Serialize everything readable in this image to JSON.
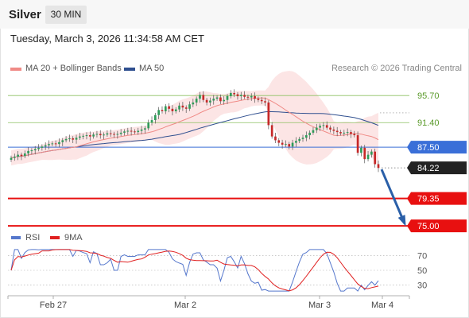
{
  "header": {
    "instrument": "Silver",
    "timeframe": "30 MIN"
  },
  "datetime": "Tuesday, March 3, 2026 11:34:58 AM CET",
  "legend": {
    "ma20": {
      "label": "MA 20 + Bollinger Bands",
      "color": "#f08a86"
    },
    "ma50": {
      "label": "MA 50",
      "color": "#2f4f8f"
    }
  },
  "credit": "Research © 2026 Trading Central",
  "rsi_legend": {
    "rsi": {
      "label": "RSI",
      "color": "#5577cc"
    },
    "ma9": {
      "label": "9MA",
      "color": "#e02020"
    }
  },
  "chart_data": [
    {
      "type": "candlestick",
      "ylim": [
        73.5,
        98.5
      ],
      "x_tick_labels": [
        "Feb 27",
        "Mar 2",
        "Mar 3",
        "Mar 4"
      ],
      "levels": [
        {
          "value": 95.7,
          "label": "95.70",
          "kind": "resistance",
          "color": "#8cc060"
        },
        {
          "value": 91.4,
          "label": "91.40",
          "kind": "resistance",
          "color": "#8cc060"
        },
        {
          "value": 87.5,
          "label": "87.50",
          "kind": "pivot",
          "color": "#3a6fd8"
        },
        {
          "value": 84.22,
          "label": "84.22",
          "kind": "last",
          "color": "#222222"
        },
        {
          "value": 79.35,
          "label": "79.35",
          "kind": "support",
          "color": "#e81010"
        },
        {
          "value": 75.0,
          "label": "75.00",
          "kind": "support",
          "color": "#e81010"
        }
      ],
      "closes": [
        85.8,
        86.0,
        86.3,
        86.1,
        86.5,
        86.9,
        87.0,
        87.2,
        87.4,
        87.6,
        87.8,
        88.0,
        88.1,
        88.0,
        88.3,
        88.6,
        88.8,
        88.9,
        88.7,
        89.0,
        89.2,
        89.3,
        89.4,
        89.2,
        89.5,
        89.6,
        89.4,
        89.5,
        89.7,
        89.6,
        89.5,
        89.6,
        89.8,
        90.0,
        90.1,
        90.0,
        89.9,
        90.1,
        90.3,
        90.5,
        91.4,
        91.8,
        92.6,
        93.4,
        93.2,
        94.0,
        93.6,
        93.2,
        93.5,
        94.1,
        93.8,
        93.6,
        94.3,
        94.6,
        95.2,
        95.8,
        95.0,
        94.6,
        94.9,
        95.2,
        95.4,
        94.8,
        95.0,
        95.6,
        96.1,
        95.9,
        95.6,
        95.8,
        95.5,
        95.4,
        95.6,
        95.2,
        95.0,
        94.8,
        94.6,
        91.0,
        89.2,
        88.6,
        88.2,
        87.9,
        88.0,
        87.6,
        88.2,
        88.5,
        88.8,
        89.0,
        89.4,
        89.8,
        90.2,
        90.6,
        90.9,
        91.0,
        90.6,
        90.3,
        90.1,
        89.9,
        89.7,
        89.8,
        89.9,
        89.6,
        89.4,
        86.6,
        87.4,
        85.6,
        86.3,
        86.8,
        84.8,
        84.2
      ],
      "ma_periods": [
        20,
        50
      ],
      "bollinger": {
        "period": 20,
        "std_dev": 2
      },
      "projection": {
        "from": 84.22,
        "to": 75.0,
        "color": "#2a5fa8"
      }
    },
    {
      "type": "line",
      "title": "RSI",
      "ylim": [
        20,
        80
      ],
      "y_ticks": [
        70,
        50,
        30
      ],
      "series": [
        {
          "name": "RSI"
        },
        {
          "name": "9MA"
        }
      ]
    }
  ]
}
